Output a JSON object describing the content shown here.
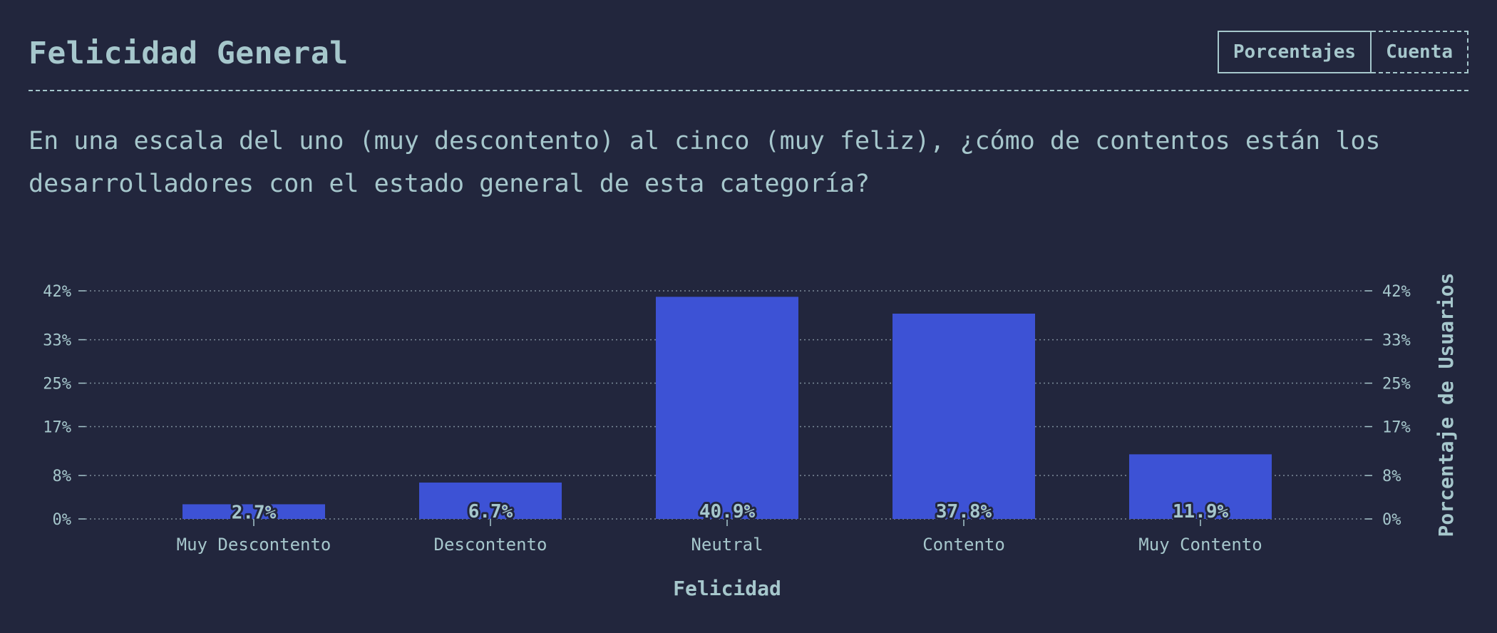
{
  "header": {
    "title": "Felicidad General",
    "toggle": {
      "percent_label": "Porcentajes",
      "count_label": "Cuenta"
    }
  },
  "question": "En una escala del uno (muy descontento) al cinco (muy feliz), ¿cómo de contentos están los desarrolladores con el estado general de esta categoría?",
  "colors": {
    "background": "#22263d",
    "bar": "#3d52d5",
    "text": "#a6c7cc",
    "grid": "#7d8c9a"
  },
  "chart_data": {
    "type": "bar",
    "categories": [
      "Muy Descontento",
      "Descontento",
      "Neutral",
      "Contento",
      "Muy Contento"
    ],
    "values": [
      2.7,
      6.7,
      40.9,
      37.8,
      11.9
    ],
    "value_labels": [
      "2.7%",
      "6.7%",
      "40.9%",
      "37.8%",
      "11.9%"
    ],
    "xlabel": "Felicidad",
    "ylabel": "Porcentaje de Usuarios",
    "ylim": [
      0,
      42
    ],
    "yticks": [
      0,
      8,
      17,
      25,
      33,
      42
    ],
    "ytick_labels": [
      "0%",
      "8%",
      "17%",
      "25%",
      "33%",
      "42%"
    ],
    "grid": true,
    "y_axis_sides": "both"
  }
}
